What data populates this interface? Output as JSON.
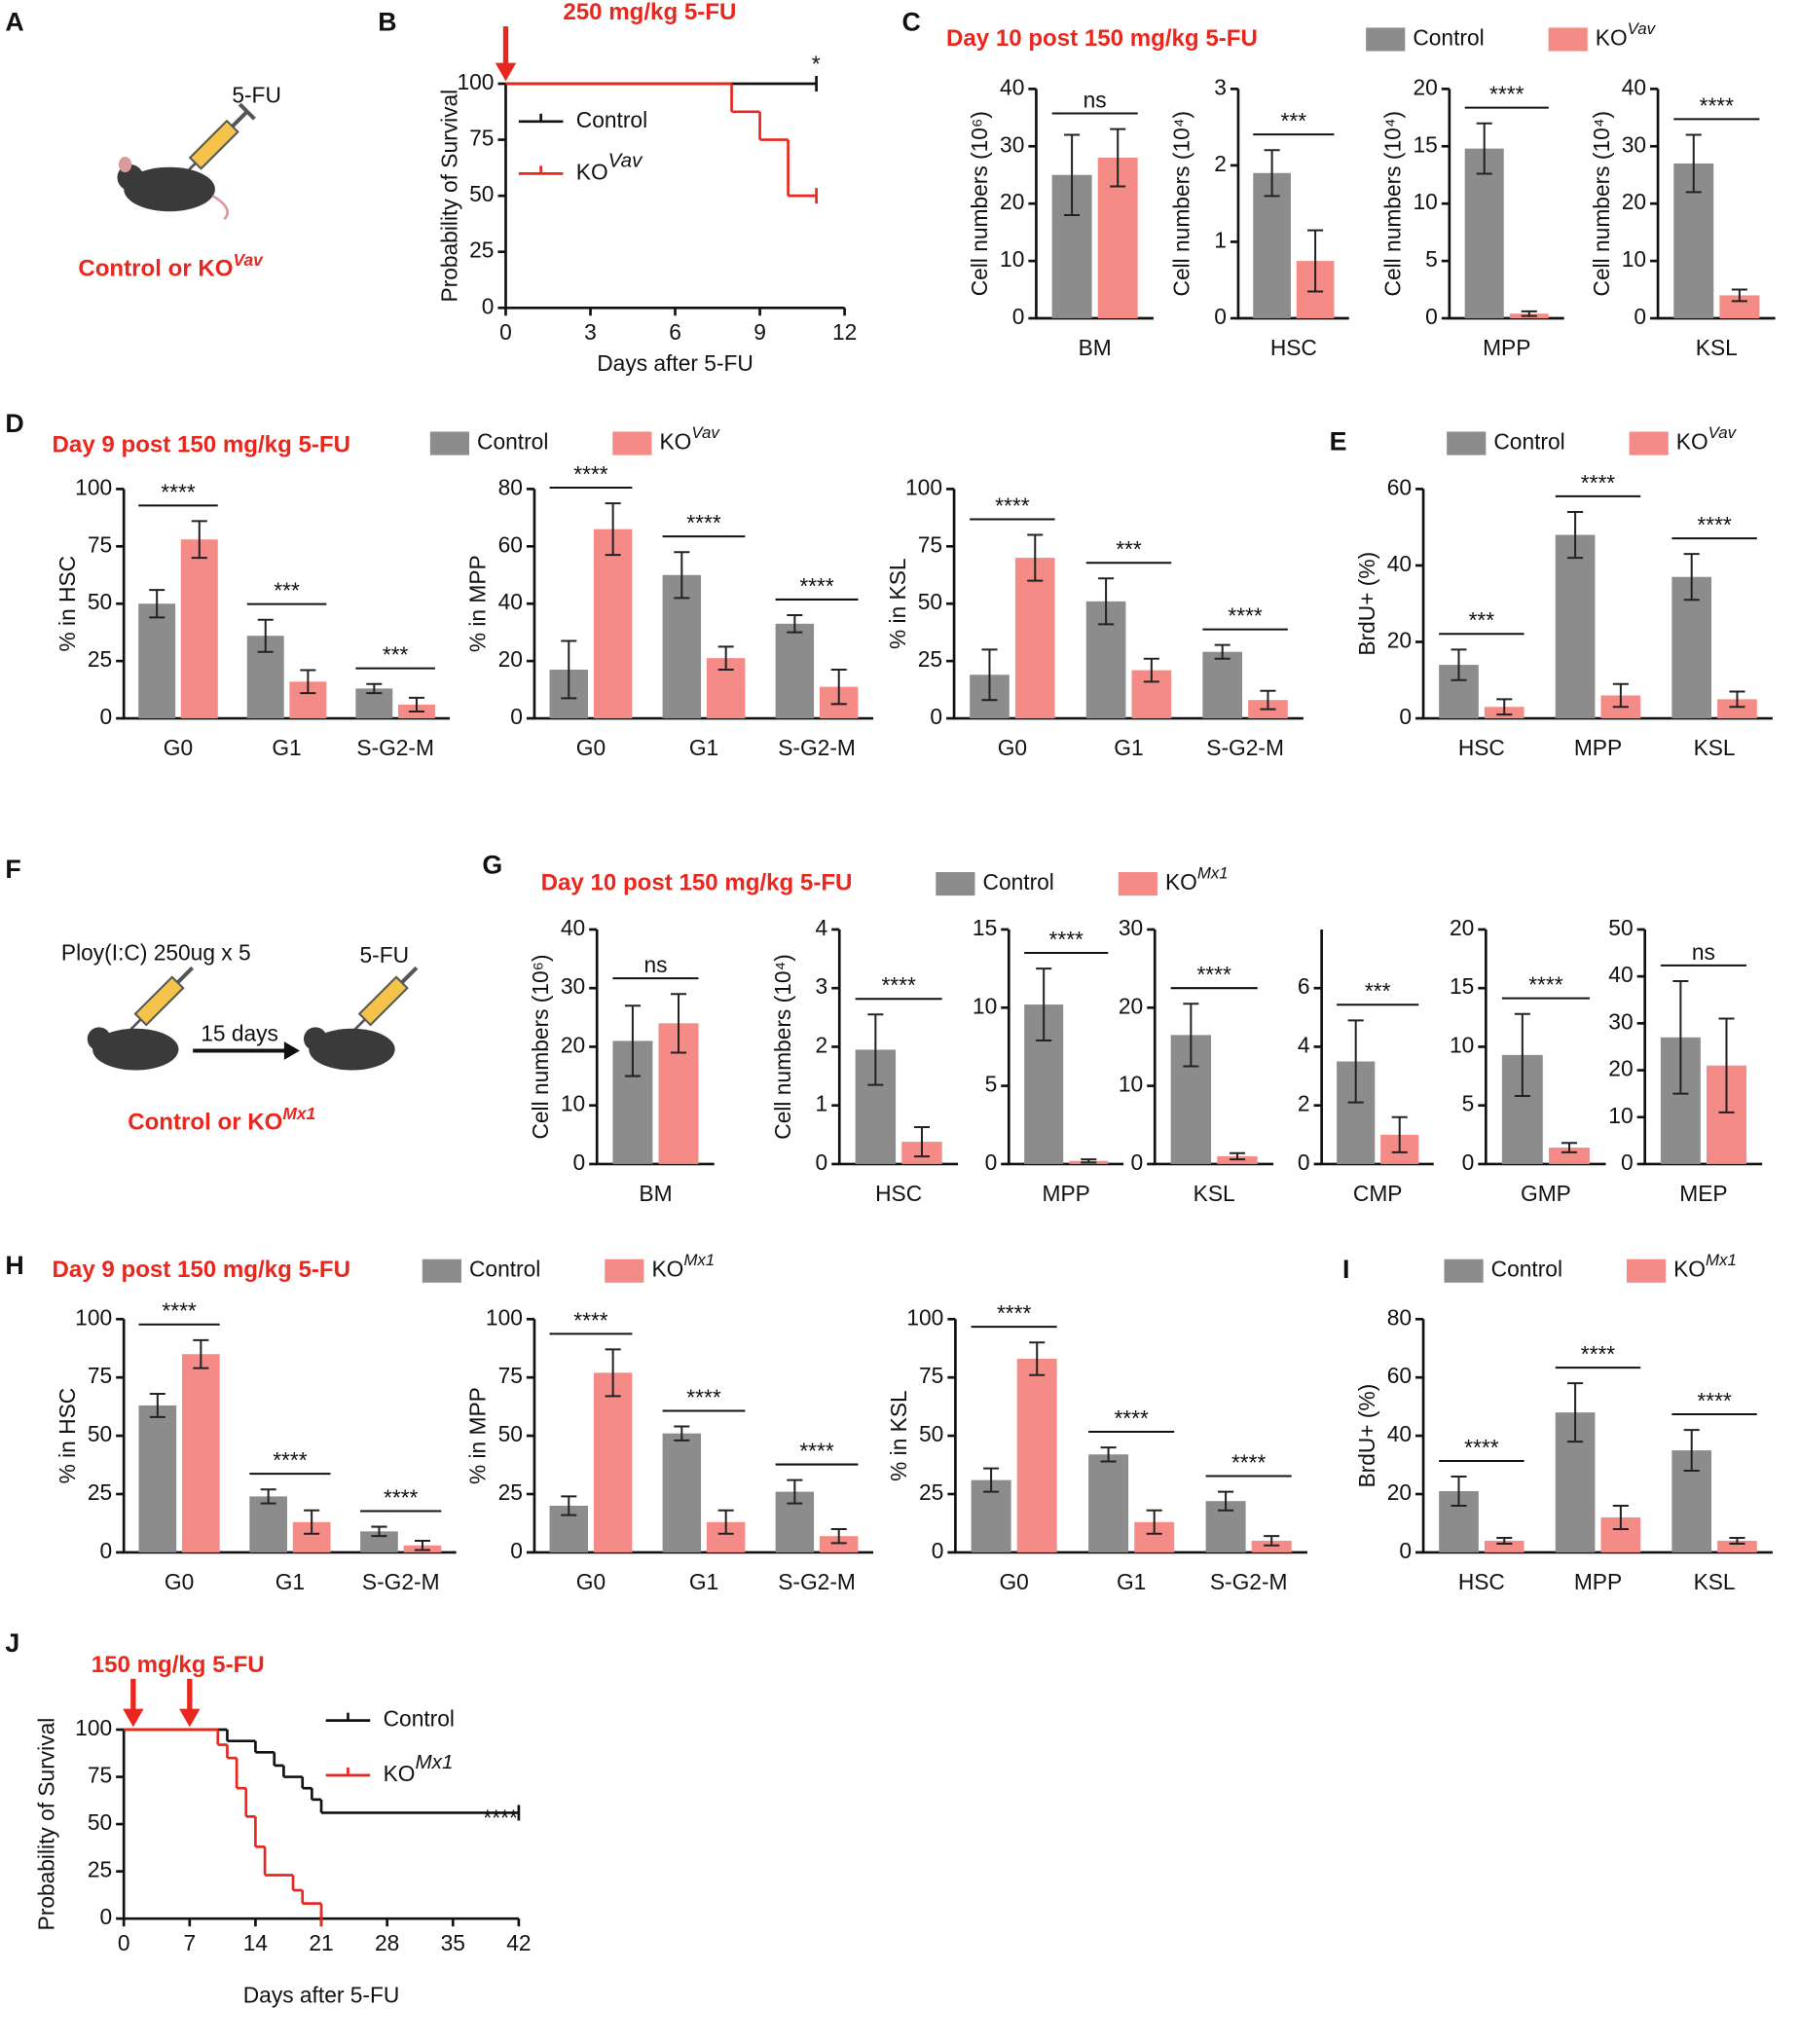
{
  "diagrams": {
    "A": {
      "panel": "A",
      "drug": "5-FU",
      "caption": "Control or KO",
      "caption_sup": "Vav"
    },
    "F": {
      "panel": "F",
      "treatment": "Ploy(I:C) 250ug x 5",
      "interval": "15 days",
      "drug": "5-FU",
      "caption": "Control or KO",
      "caption_sup": "Mx1"
    }
  },
  "chart_data": [
    {
      "type": "survival",
      "panel": "B",
      "annotation": "250 mg/kg 5-FU",
      "arrows_x": [
        0
      ],
      "ylabel": "Probability of Survival",
      "xlabel": "Days after 5-FU",
      "xlim": [
        0,
        12
      ],
      "xticks": [
        0,
        3,
        6,
        9,
        12
      ],
      "ylim": [
        0,
        100
      ],
      "yticks": [
        0,
        25,
        50,
        75,
        100
      ],
      "legend": true,
      "significance": "*",
      "series": [
        {
          "name": "Control",
          "color": "#111111",
          "x": [
            0,
            11
          ],
          "values": [
            100,
            100
          ]
        },
        {
          "name": "KO",
          "name_sup": "Vav",
          "color": "#e8281e",
          "x": [
            0,
            8,
            9,
            10,
            11
          ],
          "values": [
            100,
            87.5,
            75,
            50,
            50
          ]
        }
      ]
    },
    {
      "type": "bar",
      "panel": "C",
      "title": "Day 10 post 150 mg/kg 5-FU",
      "legend": true,
      "ylabel": "Cell numbers (10⁶)",
      "categories": [
        "BM"
      ],
      "ylim": [
        0,
        40
      ],
      "yticks": [
        0,
        10,
        20,
        30,
        40
      ],
      "significance": [
        "ns"
      ],
      "series": [
        {
          "name": "Control",
          "color": "#8c8c8c",
          "values": [
            25
          ],
          "errors": [
            7
          ]
        },
        {
          "name": "KO",
          "name_sup": "Vav",
          "color": "#f48b86",
          "values": [
            28
          ],
          "errors": [
            5
          ]
        }
      ]
    },
    {
      "type": "bar",
      "ylabel": "Cell numbers (10⁴)",
      "categories": [
        "HSC"
      ],
      "ylim": [
        0,
        3
      ],
      "yticks": [
        0,
        1,
        2,
        3
      ],
      "significance": [
        "***"
      ],
      "series": [
        {
          "color": "#8c8c8c",
          "values": [
            1.9
          ],
          "errors": [
            0.3
          ]
        },
        {
          "color": "#f48b86",
          "values": [
            0.75
          ],
          "errors": [
            0.4
          ]
        }
      ]
    },
    {
      "type": "bar",
      "ylabel": "Cell numbers (10⁴)",
      "categories": [
        "MPP"
      ],
      "ylim": [
        0,
        20
      ],
      "yticks": [
        0,
        5,
        10,
        15,
        20
      ],
      "significance": [
        "****"
      ],
      "series": [
        {
          "color": "#8c8c8c",
          "values": [
            14.8
          ],
          "errors": [
            2.2
          ]
        },
        {
          "color": "#f48b86",
          "values": [
            0.4
          ],
          "errors": [
            0.2
          ]
        }
      ]
    },
    {
      "type": "bar",
      "ylabel": "Cell numbers (10⁴)",
      "categories": [
        "KSL"
      ],
      "ylim": [
        0,
        40
      ],
      "yticks": [
        0,
        10,
        20,
        30,
        40
      ],
      "significance": [
        "****"
      ],
      "series": [
        {
          "color": "#8c8c8c",
          "values": [
            27
          ],
          "errors": [
            5
          ]
        },
        {
          "color": "#f48b86",
          "values": [
            4
          ],
          "errors": [
            1
          ]
        }
      ]
    },
    {
      "type": "bar",
      "panel": "D",
      "title": "Day 9 post 150 mg/kg 5-FU",
      "legend": true,
      "ylabel": "% in HSC",
      "categories": [
        "G0",
        "G1",
        "S-G2-M"
      ],
      "ylim": [
        0,
        100
      ],
      "yticks": [
        0,
        25,
        50,
        75,
        100
      ],
      "significance": [
        "****",
        "***",
        "***"
      ],
      "series": [
        {
          "name": "Control",
          "color": "#8c8c8c",
          "values": [
            50,
            36,
            13
          ],
          "errors": [
            6,
            7,
            2
          ]
        },
        {
          "name": "KO",
          "name_sup": "Vav",
          "color": "#f48b86",
          "values": [
            78,
            16,
            6
          ],
          "errors": [
            8,
            5,
            3
          ]
        }
      ]
    },
    {
      "type": "bar",
      "ylabel": "% in MPP",
      "categories": [
        "G0",
        "G1",
        "S-G2-M"
      ],
      "ylim": [
        0,
        80
      ],
      "yticks": [
        0,
        20,
        40,
        60,
        80
      ],
      "significance": [
        "****",
        "****",
        "****"
      ],
      "series": [
        {
          "color": "#8c8c8c",
          "values": [
            17,
            50,
            33
          ],
          "errors": [
            10,
            8,
            3
          ]
        },
        {
          "color": "#f48b86",
          "values": [
            66,
            21,
            11
          ],
          "errors": [
            9,
            4,
            6
          ]
        }
      ]
    },
    {
      "type": "bar",
      "ylabel": "% in KSL",
      "categories": [
        "G0",
        "G1",
        "S-G2-M"
      ],
      "ylim": [
        0,
        100
      ],
      "yticks": [
        0,
        25,
        50,
        75,
        100
      ],
      "significance": [
        "****",
        "***",
        "****"
      ],
      "series": [
        {
          "color": "#8c8c8c",
          "values": [
            19,
            51,
            29
          ],
          "errors": [
            11,
            10,
            3
          ]
        },
        {
          "color": "#f48b86",
          "values": [
            70,
            21,
            8
          ],
          "errors": [
            10,
            5,
            4
          ]
        }
      ]
    },
    {
      "type": "bar",
      "panel": "E",
      "legend": true,
      "ylabel": "BrdU+ (%)",
      "categories": [
        "HSC",
        "MPP",
        "KSL"
      ],
      "ylim": [
        0,
        60
      ],
      "yticks": [
        0,
        20,
        40,
        60
      ],
      "significance": [
        "***",
        "****",
        "****"
      ],
      "series": [
        {
          "name": "Control",
          "color": "#8c8c8c",
          "values": [
            14,
            48,
            37
          ],
          "errors": [
            4,
            6,
            6
          ]
        },
        {
          "name": "KO",
          "name_sup": "Vav",
          "color": "#f48b86",
          "values": [
            3,
            6,
            5
          ],
          "errors": [
            2,
            3,
            2
          ]
        }
      ]
    },
    {
      "type": "bar",
      "panel": "G",
      "title": "Day 10 post 150 mg/kg 5-FU",
      "legend": true,
      "ylabel": "Cell numbers (10⁶)",
      "categories": [
        "BM"
      ],
      "ylim": [
        0,
        40
      ],
      "yticks": [
        0,
        10,
        20,
        30,
        40
      ],
      "significance": [
        "ns"
      ],
      "series": [
        {
          "name": "Control",
          "color": "#8c8c8c",
          "values": [
            21
          ],
          "errors": [
            6
          ]
        },
        {
          "name": "KO",
          "name_sup": "Mx1",
          "color": "#f48b86",
          "values": [
            24
          ],
          "errors": [
            5
          ]
        }
      ]
    },
    {
      "type": "bar",
      "ylabel": "Cell numbers (10⁴)",
      "categories": [
        "HSC"
      ],
      "ylim": [
        0,
        4
      ],
      "yticks": [
        0,
        1,
        2,
        3,
        4
      ],
      "significance": [
        "****"
      ],
      "series": [
        {
          "color": "#8c8c8c",
          "values": [
            1.95
          ],
          "errors": [
            0.6
          ]
        },
        {
          "color": "#f48b86",
          "values": [
            0.38
          ],
          "errors": [
            0.25
          ]
        }
      ]
    },
    {
      "type": "bar",
      "categories": [
        "MPP"
      ],
      "ylim": [
        0,
        15
      ],
      "yticks": [
        0,
        5,
        10,
        15
      ],
      "significance": [
        "****"
      ],
      "series": [
        {
          "color": "#8c8c8c",
          "values": [
            10.2
          ],
          "errors": [
            2.3
          ]
        },
        {
          "color": "#f48b86",
          "values": [
            0.2
          ],
          "errors": [
            0.1
          ]
        }
      ]
    },
    {
      "type": "bar",
      "categories": [
        "KSL"
      ],
      "ylim": [
        0,
        30
      ],
      "yticks": [
        0,
        10,
        20,
        30
      ],
      "significance": [
        "****"
      ],
      "series": [
        {
          "color": "#8c8c8c",
          "values": [
            16.5
          ],
          "errors": [
            4
          ]
        },
        {
          "color": "#f48b86",
          "values": [
            1
          ],
          "errors": [
            0.4
          ]
        }
      ]
    },
    {
      "type": "bar",
      "categories": [
        "CMP"
      ],
      "ylim": [
        0,
        8
      ],
      "yticks": [
        0,
        2,
        4,
        6
      ],
      "significance": [
        "***"
      ],
      "series": [
        {
          "color": "#8c8c8c",
          "values": [
            3.5
          ],
          "errors": [
            1.4
          ]
        },
        {
          "color": "#f48b86",
          "values": [
            1
          ],
          "errors": [
            0.6
          ]
        }
      ]
    },
    {
      "type": "bar",
      "categories": [
        "GMP"
      ],
      "ylim": [
        0,
        20
      ],
      "yticks": [
        0,
        5,
        10,
        15,
        20
      ],
      "significance": [
        "****"
      ],
      "series": [
        {
          "color": "#8c8c8c",
          "values": [
            9.3
          ],
          "errors": [
            3.5
          ]
        },
        {
          "color": "#f48b86",
          "values": [
            1.4
          ],
          "errors": [
            0.4
          ]
        }
      ]
    },
    {
      "type": "bar",
      "categories": [
        "MEP"
      ],
      "ylim": [
        0,
        50
      ],
      "yticks": [
        0,
        10,
        20,
        30,
        40,
        50
      ],
      "significance": [
        "ns"
      ],
      "series": [
        {
          "color": "#8c8c8c",
          "values": [
            27
          ],
          "errors": [
            12
          ]
        },
        {
          "color": "#f48b86",
          "values": [
            21
          ],
          "errors": [
            10
          ]
        }
      ]
    },
    {
      "type": "bar",
      "panel": "H",
      "title": "Day 9 post 150 mg/kg 5-FU",
      "legend": true,
      "ylabel": "% in HSC",
      "categories": [
        "G0",
        "G1",
        "S-G2-M"
      ],
      "ylim": [
        0,
        100
      ],
      "yticks": [
        0,
        25,
        50,
        75,
        100
      ],
      "significance": [
        "****",
        "****",
        "****"
      ],
      "series": [
        {
          "name": "Control",
          "color": "#8c8c8c",
          "values": [
            63,
            24,
            9
          ],
          "errors": [
            5,
            3,
            2
          ]
        },
        {
          "name": "KO",
          "name_sup": "Mx1",
          "color": "#f48b86",
          "values": [
            85,
            13,
            3
          ],
          "errors": [
            6,
            5,
            2
          ]
        }
      ]
    },
    {
      "type": "bar",
      "ylabel": "% in MPP",
      "categories": [
        "G0",
        "G1",
        "S-G2-M"
      ],
      "ylim": [
        0,
        100
      ],
      "yticks": [
        0,
        25,
        50,
        75,
        100
      ],
      "significance": [
        "****",
        "****",
        "****"
      ],
      "series": [
        {
          "color": "#8c8c8c",
          "values": [
            20,
            51,
            26
          ],
          "errors": [
            4,
            3,
            5
          ]
        },
        {
          "color": "#f48b86",
          "values": [
            77,
            13,
            7
          ],
          "errors": [
            10,
            5,
            3
          ]
        }
      ]
    },
    {
      "type": "bar",
      "ylabel": "% in KSL",
      "categories": [
        "G0",
        "G1",
        "S-G2-M"
      ],
      "ylim": [
        0,
        100
      ],
      "yticks": [
        0,
        25,
        50,
        75,
        100
      ],
      "significance": [
        "****",
        "****",
        "****"
      ],
      "series": [
        {
          "color": "#8c8c8c",
          "values": [
            31,
            42,
            22
          ],
          "errors": [
            5,
            3,
            4
          ]
        },
        {
          "color": "#f48b86",
          "values": [
            83,
            13,
            5
          ],
          "errors": [
            7,
            5,
            2
          ]
        }
      ]
    },
    {
      "type": "bar",
      "panel": "I",
      "legend": true,
      "ylabel": "BrdU+ (%)",
      "categories": [
        "HSC",
        "MPP",
        "KSL"
      ],
      "ylim": [
        0,
        80
      ],
      "yticks": [
        0,
        20,
        40,
        60,
        80
      ],
      "significance": [
        "****",
        "****",
        "****"
      ],
      "series": [
        {
          "name": "Control",
          "color": "#8c8c8c",
          "values": [
            21,
            48,
            35
          ],
          "errors": [
            5,
            10,
            7
          ]
        },
        {
          "name": "KO",
          "name_sup": "Mx1",
          "color": "#f48b86",
          "values": [
            4,
            12,
            4
          ],
          "errors": [
            1,
            4,
            1
          ]
        }
      ]
    },
    {
      "type": "survival",
      "panel": "J",
      "annotation": "150 mg/kg 5-FU",
      "arrows_x": [
        1,
        7
      ],
      "ylabel": "Probability of Survival",
      "xlabel": "Days after 5-FU",
      "xlim": [
        0,
        42
      ],
      "xticks": [
        0,
        7,
        14,
        21,
        28,
        35,
        42
      ],
      "ylim": [
        0,
        100
      ],
      "yticks": [
        0,
        25,
        50,
        75,
        100
      ],
      "legend": true,
      "significance": "****",
      "series": [
        {
          "name": "Control",
          "color": "#111111",
          "x": [
            0,
            11,
            14,
            16,
            17,
            19,
            20,
            21,
            42
          ],
          "values": [
            100,
            94,
            88,
            81,
            75,
            69,
            63,
            56,
            56
          ]
        },
        {
          "name": "KO",
          "name_sup": "Mx1",
          "color": "#e8281e",
          "x": [
            0,
            10,
            11,
            12,
            13,
            14,
            15,
            18,
            19,
            21
          ],
          "values": [
            100,
            92,
            85,
            69,
            54,
            38,
            23,
            15,
            8,
            0
          ]
        }
      ]
    }
  ]
}
